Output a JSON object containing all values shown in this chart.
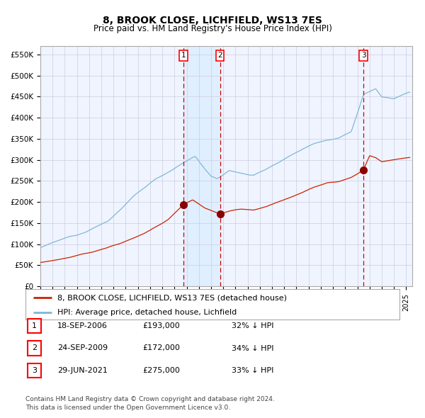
{
  "title": "8, BROOK CLOSE, LICHFIELD, WS13 7ES",
  "subtitle": "Price paid vs. HM Land Registry's House Price Index (HPI)",
  "xlim_start": 1995.0,
  "xlim_end": 2025.5,
  "ylim_min": 0,
  "ylim_max": 570000,
  "yticks": [
    0,
    50000,
    100000,
    150000,
    200000,
    250000,
    300000,
    350000,
    400000,
    450000,
    500000,
    550000
  ],
  "ytick_labels": [
    "£0",
    "£50K",
    "£100K",
    "£150K",
    "£200K",
    "£250K",
    "£300K",
    "£350K",
    "£400K",
    "£450K",
    "£500K",
    "£550K"
  ],
  "hpi_color": "#7fb8d8",
  "price_color": "#cc2200",
  "sale_marker_color": "#880000",
  "vline_color": "#cc0000",
  "shade_color": "#ddeeff",
  "bg_color": "#f0f4ff",
  "grid_color": "#ccccdd",
  "sale1_date": 2006.72,
  "sale1_price": 193000,
  "sale2_date": 2009.73,
  "sale2_price": 172000,
  "sale3_date": 2021.49,
  "sale3_price": 275000,
  "legend_entries": [
    "8, BROOK CLOSE, LICHFIELD, WS13 7ES (detached house)",
    "HPI: Average price, detached house, Lichfield"
  ],
  "table_rows": [
    [
      "1",
      "18-SEP-2006",
      "£193,000",
      "32% ↓ HPI"
    ],
    [
      "2",
      "24-SEP-2009",
      "£172,000",
      "34% ↓ HPI"
    ],
    [
      "3",
      "29-JUN-2021",
      "£275,000",
      "33% ↓ HPI"
    ]
  ],
  "footer": "Contains HM Land Registry data © Crown copyright and database right 2024.\nThis data is licensed under the Open Government Licence v3.0.",
  "title_fontsize": 10,
  "subtitle_fontsize": 8.5,
  "tick_fontsize": 7.5,
  "legend_fontsize": 8,
  "table_fontsize": 8,
  "footer_fontsize": 6.5
}
